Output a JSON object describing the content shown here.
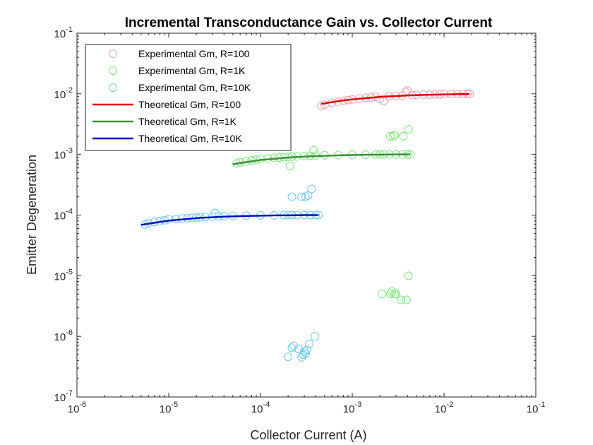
{
  "chart_data": {
    "type": "scatter",
    "title": "Incremental Transconductance Gain vs. Collector Current",
    "xlabel": "Collector Current (A)",
    "ylabel": "Emitter Degeneration",
    "xscale": "log",
    "yscale": "log",
    "xlim": [
      1e-06,
      0.1
    ],
    "ylim": [
      1e-07,
      0.1
    ],
    "x_ticks": [
      {
        "base": "10",
        "exp": "-6",
        "value": 1e-06
      },
      {
        "base": "10",
        "exp": "-5",
        "value": 1e-05
      },
      {
        "base": "10",
        "exp": "-4",
        "value": 0.0001
      },
      {
        "base": "10",
        "exp": "-3",
        "value": 0.001
      },
      {
        "base": "10",
        "exp": "-2",
        "value": 0.01
      },
      {
        "base": "10",
        "exp": "-1",
        "value": 0.1
      }
    ],
    "y_ticks": [
      {
        "base": "10",
        "exp": "-7",
        "value": 1e-07
      },
      {
        "base": "10",
        "exp": "-6",
        "value": 1e-06
      },
      {
        "base": "10",
        "exp": "-5",
        "value": 1e-05
      },
      {
        "base": "10",
        "exp": "-4",
        "value": 0.0001
      },
      {
        "base": "10",
        "exp": "-3",
        "value": 0.001
      },
      {
        "base": "10",
        "exp": "-2",
        "value": 0.01
      },
      {
        "base": "10",
        "exp": "-1",
        "value": 0.1
      }
    ],
    "grid": false,
    "legend_position": "top-left",
    "series": [
      {
        "name": "Experimental Gm, R=100",
        "kind": "markers",
        "color": "#ef9fb4",
        "x": [
          0.00046,
          0.0005,
          0.0006,
          0.0007,
          0.0008,
          0.0009,
          0.001,
          0.0012,
          0.0014,
          0.0016,
          0.0018,
          0.002,
          0.0022,
          0.0025,
          0.003,
          0.0035,
          0.0038,
          0.004,
          0.0045,
          0.005,
          0.006,
          0.007,
          0.008,
          0.009,
          0.01,
          0.012,
          0.014,
          0.016,
          0.018,
          0.019
        ],
        "y": [
          0.0064,
          0.0066,
          0.0071,
          0.0074,
          0.0077,
          0.0079,
          0.0081,
          0.0084,
          0.0086,
          0.0087,
          0.0089,
          0.0083,
          0.0076,
          0.0091,
          0.0092,
          0.0093,
          0.0107,
          0.0113,
          0.0095,
          0.0096,
          0.0097,
          0.0097,
          0.0098,
          0.0098,
          0.0099,
          0.0099,
          0.0099,
          0.01,
          0.01,
          0.01
        ]
      },
      {
        "name": "Experimental Gm, R=1K",
        "kind": "markers",
        "color": "#7be87b",
        "x": [
          5.5e-05,
          6e-05,
          7e-05,
          8e-05,
          9e-05,
          0.0001,
          0.00012,
          0.00014,
          0.00016,
          0.00018,
          0.0002,
          0.00022,
          0.00025,
          0.0003,
          0.00035,
          0.0004,
          0.0005,
          0.0007,
          0.001,
          0.0014,
          0.0018,
          0.002,
          0.0022,
          0.0025,
          0.003,
          0.0035,
          0.004,
          0.0043,
          0.00021,
          0.00038,
          0.0026,
          0.0028,
          0.0029,
          0.0036,
          0.0041,
          0.0021,
          0.0026,
          0.0027,
          0.0029,
          0.003,
          0.0034,
          0.0039,
          0.0041
        ],
        "y": [
          0.00071,
          0.00074,
          0.00077,
          0.0008,
          0.00082,
          0.00085,
          0.00086,
          0.00088,
          0.00089,
          0.0009,
          0.00091,
          0.00092,
          0.00093,
          0.00094,
          0.00095,
          0.00096,
          0.00097,
          0.00098,
          0.00099,
          0.00099,
          0.001,
          0.001,
          0.001,
          0.001,
          0.001,
          0.001,
          0.001,
          0.001,
          0.00064,
          0.00118,
          0.002,
          0.002,
          0.0021,
          0.002,
          0.0026,
          5e-06,
          5e-06,
          5.5e-06,
          5e-06,
          5e-06,
          4e-06,
          4e-06,
          1e-05
        ]
      },
      {
        "name": "Experimental Gm, R=10K",
        "kind": "markers",
        "color": "#6ec6f0",
        "x": [
          5.5e-06,
          6e-06,
          7e-06,
          8e-06,
          9e-06,
          1e-05,
          1.2e-05,
          1.4e-05,
          1.6e-05,
          1.8e-05,
          2e-05,
          2.2e-05,
          2.5e-05,
          3e-05,
          3.2e-05,
          3.5e-05,
          4e-05,
          5e-05,
          7e-05,
          0.0001,
          0.00014,
          0.00018,
          0.0002,
          0.00022,
          0.00025,
          0.0003,
          0.00035,
          0.0004,
          0.00043,
          0.00022,
          0.00028,
          0.00031,
          0.00033,
          0.00036,
          0.0002,
          0.00022,
          0.00023,
          0.00026,
          0.00028,
          0.00029,
          0.0003,
          0.00031,
          0.00032,
          0.00034,
          0.00039
        ],
        "y": [
          7e-05,
          7.3e-05,
          7.7e-05,
          8e-05,
          8.2e-05,
          8.5e-05,
          8.6e-05,
          8.8e-05,
          8.9e-05,
          9e-05,
          9.1e-05,
          9.2e-05,
          9.3e-05,
          9.4e-05,
          0.000108,
          9.5e-05,
          9.6e-05,
          9.7e-05,
          9.8e-05,
          9.9e-05,
          9.9e-05,
          0.0001,
          0.0001,
          0.0001,
          0.0001,
          0.0001,
          0.0001,
          0.0001,
          0.0001,
          0.0002,
          0.0002,
          0.0002,
          0.00021,
          0.00027,
          4.6e-07,
          6.5e-07,
          7e-07,
          6.2e-07,
          4.5e-07,
          5e-07,
          5.6e-07,
          5.2e-07,
          6e-07,
          7.5e-07,
          1e-06
        ]
      },
      {
        "name": "Theoretical Gm, R=100",
        "kind": "line",
        "color": "#e00000",
        "x": [
          0.00046,
          0.0006,
          0.0008,
          0.001,
          0.0013,
          0.0017,
          0.0022,
          0.003,
          0.004,
          0.006,
          0.008,
          0.011,
          0.015,
          0.019
        ],
        "y": [
          0.0068,
          0.0073,
          0.0078,
          0.0081,
          0.0084,
          0.0087,
          0.009,
          0.0092,
          0.0094,
          0.0096,
          0.0097,
          0.0098,
          0.0099,
          0.0099
        ]
      },
      {
        "name": "Theoretical Gm, R=1K",
        "kind": "line",
        "color": "#3a8f3a",
        "x": [
          5e-05,
          6e-05,
          8e-05,
          0.0001,
          0.00013,
          0.00017,
          0.00022,
          0.0003,
          0.0004,
          0.0006,
          0.0008,
          0.0011,
          0.0015,
          0.002,
          0.003,
          0.0043
        ],
        "y": [
          0.00069,
          0.00072,
          0.00077,
          0.00081,
          0.00084,
          0.00087,
          0.0009,
          0.00092,
          0.00094,
          0.00096,
          0.00097,
          0.00098,
          0.00099,
          0.00099,
          0.001,
          0.001
        ]
      },
      {
        "name": "Theoretical Gm, R=10K",
        "kind": "line",
        "color": "#0010c0",
        "x": [
          5e-06,
          6e-06,
          8e-06,
          1e-05,
          1.3e-05,
          1.7e-05,
          2.2e-05,
          3e-05,
          4e-05,
          6e-05,
          8e-05,
          0.00011,
          0.00015,
          0.0002,
          0.0003,
          0.00043
        ],
        "y": [
          6.9e-05,
          7.2e-05,
          7.7e-05,
          8.1e-05,
          8.4e-05,
          8.7e-05,
          9e-05,
          9.2e-05,
          9.4e-05,
          9.6e-05,
          9.7e-05,
          9.8e-05,
          9.9e-05,
          9.9e-05,
          0.0001,
          0.0001
        ]
      }
    ]
  }
}
